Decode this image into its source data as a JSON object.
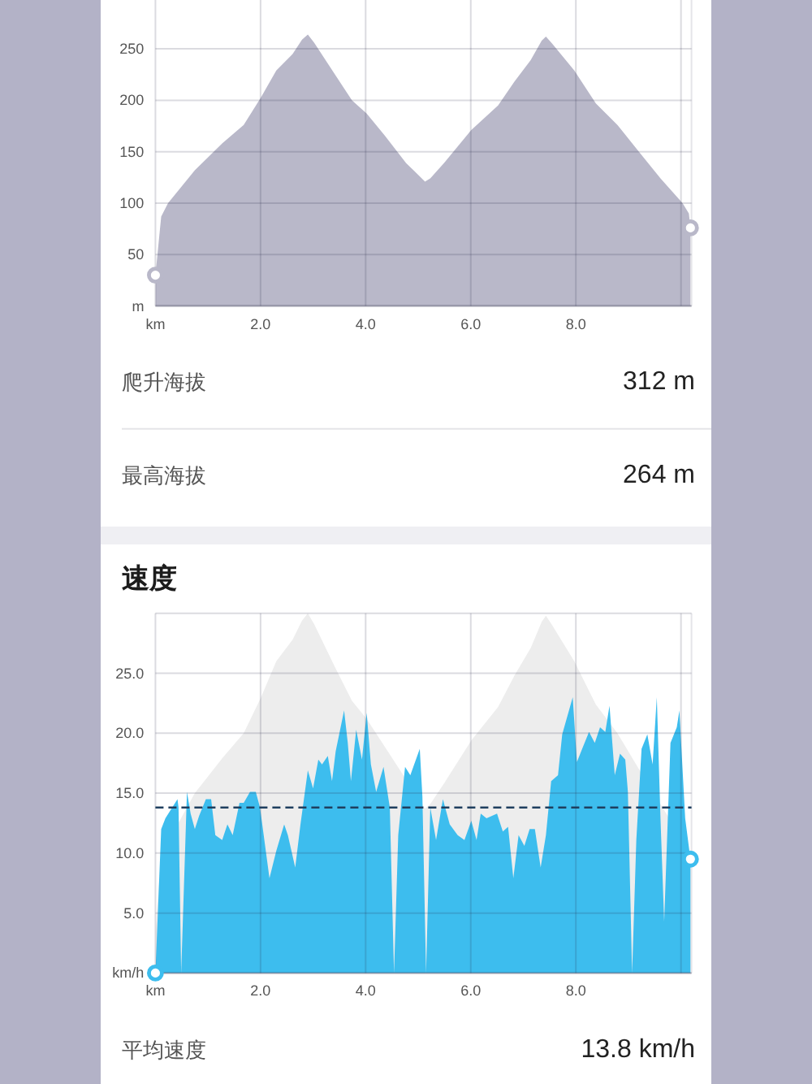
{
  "chart_data": [
    {
      "type": "area",
      "series": [
        {
          "x": [
            0,
            0.11,
            0.24,
            0.75,
            1.27,
            1.68,
            2.0,
            2.3,
            2.61,
            2.79,
            2.9,
            3.02,
            3.43,
            3.74,
            4.02,
            4.36,
            4.77,
            5.13,
            5.23,
            5.49,
            6.01,
            6.52,
            6.83,
            7.14,
            7.35,
            7.43,
            7.55,
            7.97,
            8.38,
            8.79,
            9.2,
            9.61,
            10.03,
            10.15,
            10.18
          ],
          "values": [
            30,
            87,
            100,
            132,
            158,
            176,
            202,
            229,
            245,
            259,
            264,
            256,
            224,
            200,
            187,
            166,
            139,
            121,
            124,
            139,
            171,
            195,
            218,
            239,
            258,
            262,
            255,
            229,
            197,
            176,
            150,
            124,
            100,
            90,
            76
          ],
          "color": "#b9b8c9"
        },
        {
          "type": "scatter",
          "marker": "circle",
          "x": [
            0,
            10.18
          ],
          "values": [
            30,
            76
          ],
          "color": "#b9b8c9"
        }
      ],
      "xlim": [
        0,
        10.2
      ],
      "xticks": [
        {
          "value": 0,
          "label": "km"
        },
        {
          "value": 2,
          "label": "2.0"
        },
        {
          "value": 4,
          "label": "4.0"
        },
        {
          "value": 6,
          "label": "6.0"
        },
        {
          "value": 8,
          "label": "8.0"
        },
        {
          "value": 10,
          "label": null
        }
      ],
      "ylim": [
        0,
        300
      ],
      "yticks": [
        {
          "value": 0,
          "label": "m"
        },
        50,
        100,
        150,
        200,
        250
      ],
      "grid": true,
      "annotations": [
        "爬升海拔",
        "312 m",
        "最高海拔",
        "264 m"
      ]
    },
    {
      "type": "area",
      "title": "速度",
      "series": [
        {
          "x": [
            0,
            0.11,
            0.75,
            1.27,
            1.68,
            2.0,
            2.3,
            2.61,
            2.79,
            2.9,
            3.02,
            3.43,
            3.74,
            4.02,
            4.36,
            5.13,
            5.23,
            5.49,
            6.01,
            6.52,
            6.83,
            7.14,
            7.35,
            7.43,
            7.55,
            7.97,
            8.38,
            8.79,
            9.2,
            9.61,
            10.15,
            10.18
          ],
          "values": [
            3.4,
            9.9,
            15.0,
            17.9,
            20.0,
            22.9,
            26.0,
            27.8,
            29.4,
            30.0,
            29.1,
            25.4,
            22.7,
            21.2,
            18.9,
            13.7,
            14.1,
            15.8,
            19.4,
            22.2,
            24.8,
            27.1,
            29.3,
            29.8,
            29.0,
            26.0,
            22.4,
            20.0,
            17.0,
            14.1,
            10.2,
            8.6
          ],
          "color": "#ededed"
        },
        {
          "x": [
            0,
            0.11,
            0.19,
            0.29,
            0.42,
            0.44,
            0.49,
            0.6,
            0.67,
            0.75,
            0.83,
            0.96,
            1.06,
            1.14,
            1.27,
            1.37,
            1.47,
            1.6,
            1.68,
            1.8,
            1.91,
            1.99,
            2.17,
            2.3,
            2.45,
            2.52,
            2.66,
            2.76,
            2.9,
            3.0,
            3.1,
            3.17,
            3.28,
            3.36,
            3.43,
            3.59,
            3.66,
            3.72,
            3.82,
            3.93,
            4.02,
            4.1,
            4.2,
            4.34,
            4.46,
            4.54,
            4.62,
            4.75,
            4.85,
            5.03,
            5.08,
            5.15,
            5.23,
            5.34,
            5.47,
            5.6,
            5.75,
            5.88,
            6.01,
            6.11,
            6.19,
            6.3,
            6.5,
            6.61,
            6.71,
            6.81,
            6.91,
            7.02,
            7.12,
            7.22,
            7.33,
            7.43,
            7.53,
            7.66,
            7.74,
            7.94,
            8.02,
            8.12,
            8.25,
            8.36,
            8.46,
            8.56,
            8.64,
            8.74,
            8.84,
            8.94,
            8.99,
            9.07,
            9.15,
            9.25,
            9.36,
            9.46,
            9.54,
            9.61,
            9.68,
            9.8,
            9.92,
            9.97,
            10.08,
            10.18
          ],
          "values": [
            0,
            12.0,
            12.9,
            13.6,
            14.5,
            13.8,
            0,
            15.1,
            13.3,
            12.0,
            13.1,
            14.5,
            14.5,
            11.5,
            11.1,
            12.4,
            11.5,
            14.2,
            14.2,
            15.1,
            15.1,
            13.8,
            7.9,
            10.2,
            12.4,
            11.5,
            8.8,
            12.4,
            16.9,
            15.4,
            17.8,
            17.4,
            18.1,
            16.0,
            18.5,
            21.9,
            19.2,
            16.0,
            20.3,
            17.8,
            21.7,
            17.4,
            15.1,
            17.2,
            13.8,
            0,
            11.5,
            17.2,
            16.5,
            18.7,
            14.7,
            0,
            13.8,
            11.1,
            14.5,
            12.4,
            11.5,
            11.1,
            12.7,
            11.1,
            13.3,
            12.9,
            13.3,
            11.8,
            12.2,
            7.9,
            11.5,
            10.6,
            12.0,
            12.0,
            8.8,
            11.5,
            16.0,
            16.5,
            19.9,
            23.0,
            17.6,
            18.7,
            20.1,
            19.2,
            20.5,
            20.1,
            22.3,
            16.5,
            18.3,
            17.8,
            15.1,
            0,
            11.1,
            18.7,
            19.9,
            17.4,
            23.0,
            12.9,
            4.3,
            19.2,
            20.5,
            21.9,
            12.9,
            9.5
          ],
          "color": "#3dbdee"
        },
        {
          "type": "scatter",
          "marker": "circle",
          "x": [
            0,
            10.18
          ],
          "values": [
            0,
            9.5
          ],
          "color": "#3dbdee"
        }
      ],
      "xlim": [
        0,
        10.2
      ],
      "xticks": [
        {
          "value": 0,
          "label": "km"
        },
        {
          "value": 2,
          "label": "2.0"
        },
        {
          "value": 4,
          "label": "4.0"
        },
        {
          "value": 6,
          "label": "6.0"
        },
        {
          "value": 8,
          "label": "8.0"
        },
        {
          "value": 10,
          "label": null
        }
      ],
      "ylim": [
        0,
        30
      ],
      "yticks": [
        {
          "value": 0,
          "label": "km/h"
        },
        {
          "value": 5,
          "label": "5.0"
        },
        {
          "value": 10,
          "label": "10.0"
        },
        {
          "value": 15,
          "label": "15.0"
        },
        {
          "value": 20,
          "label": "20.0"
        },
        {
          "value": 25,
          "label": "25.0"
        },
        {
          "value": 30,
          "label": null
        }
      ],
      "grid": true,
      "ref_lines": [
        {
          "axis": "y",
          "value": 13.8,
          "line_style": "dashed",
          "color": "#1f3f5f"
        }
      ],
      "annotations": [
        "平均速度",
        "13.8 km/h"
      ]
    }
  ]
}
